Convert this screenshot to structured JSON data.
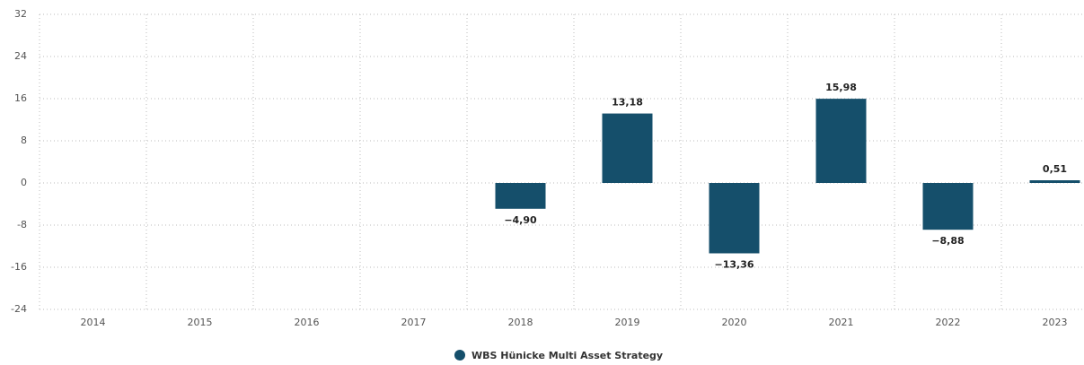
{
  "chart_data": {
    "type": "bar",
    "categories": [
      "2014",
      "2015",
      "2016",
      "2017",
      "2018",
      "2019",
      "2020",
      "2021",
      "2022",
      "2023"
    ],
    "series": [
      {
        "name": "WBS Hünicke Multi Asset Strategy",
        "color": "#154f6b",
        "values": [
          null,
          null,
          null,
          null,
          -4.9,
          13.18,
          -13.36,
          15.98,
          -8.88,
          0.51
        ],
        "value_labels": [
          null,
          null,
          null,
          null,
          "−4,90",
          "13,18",
          "−13,36",
          "15,98",
          "−8,88",
          "0,51"
        ]
      }
    ],
    "ylim": [
      -24,
      32
    ],
    "yticks": [
      32,
      24,
      16,
      8,
      0,
      -8,
      -16,
      -24
    ],
    "grid": true,
    "legend": "bottom"
  }
}
